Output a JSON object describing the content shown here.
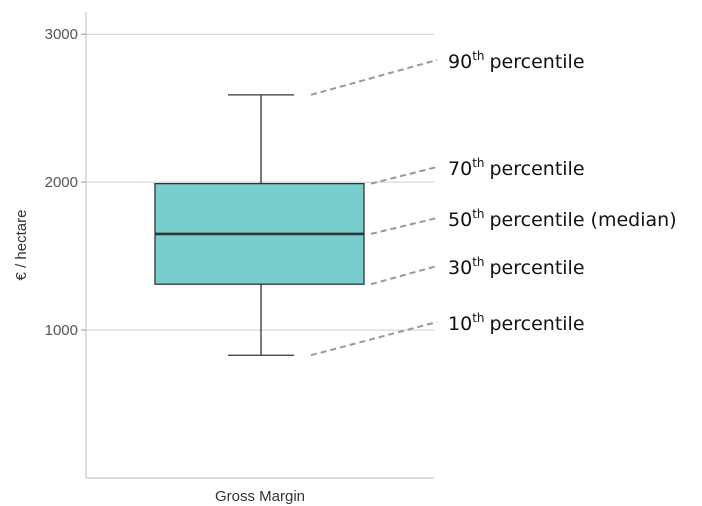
{
  "chart_data": {
    "type": "box",
    "xlabel": "",
    "ylabel": "€ / hectare",
    "ylim": [
      0,
      3150
    ],
    "yticks": [
      1000,
      2000,
      3000
    ],
    "grid": true,
    "categories": [
      "Gross Margin"
    ],
    "box": {
      "p10": 830,
      "p30": 1310,
      "median": 1650,
      "p70": 1990,
      "p90": 2590,
      "fill": "#79CDCD",
      "stroke": "#333333"
    },
    "annotations": [
      {
        "key": "p90",
        "ordinal": "90",
        "sup": "th",
        "text": "percentile"
      },
      {
        "key": "p70",
        "ordinal": "70",
        "sup": "th",
        "text": "percentile"
      },
      {
        "key": "median",
        "ordinal": "50",
        "sup": "th",
        "text": "percentile (median)"
      },
      {
        "key": "p30",
        "ordinal": "30",
        "sup": "th",
        "text": "percentile"
      },
      {
        "key": "p10",
        "ordinal": "10",
        "sup": "th",
        "text": "percentile"
      }
    ]
  }
}
